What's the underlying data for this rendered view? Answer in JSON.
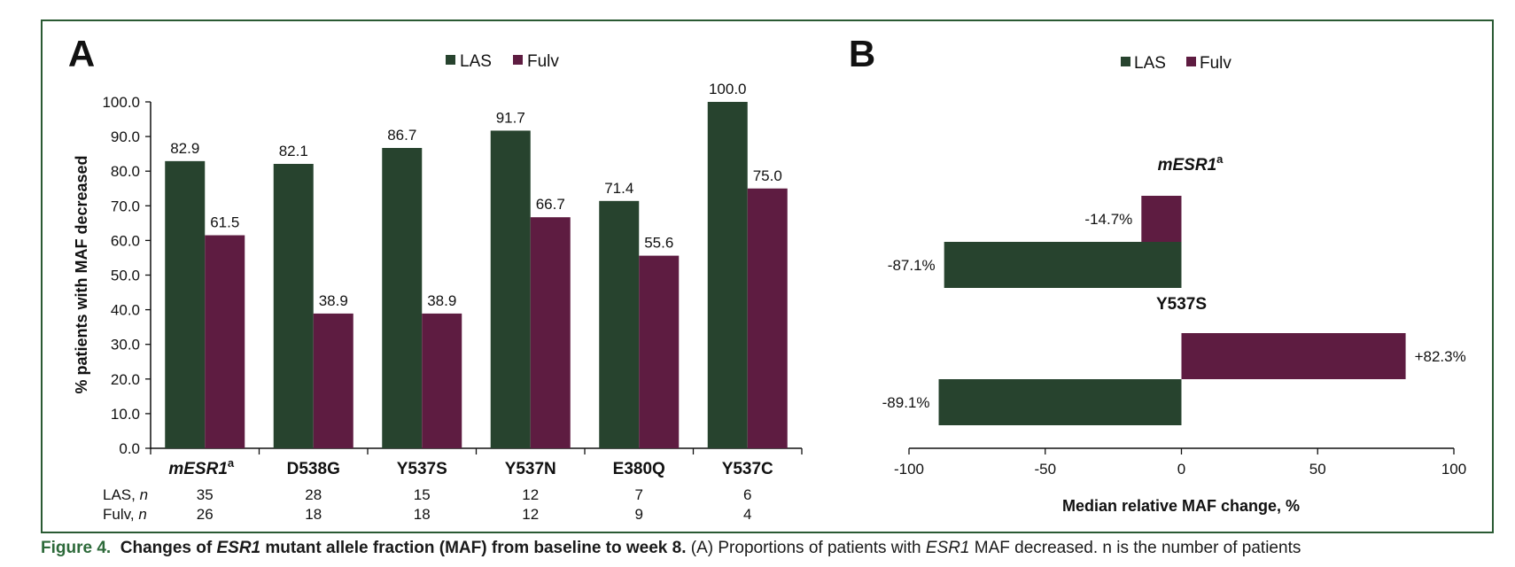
{
  "figure": {
    "fig_label": "Figure 4.",
    "caption_bold_1": "Changes of ",
    "caption_bold_gene": "ESR1",
    "caption_bold_2": " mutant allele fraction (MAF) from baseline to week 8.",
    "caption_rest_1": " (A) Proportions of patients with ",
    "caption_rest_gene": "ESR1",
    "caption_rest_2": " MAF decreased. n is the number of patients"
  },
  "colors": {
    "las": "#27432e",
    "fulv": "#5e1c41",
    "frame": "#2a5a33"
  },
  "chart_data": [
    {
      "panel": "A",
      "type": "bar",
      "ylabel": "% patients with MAF decreased",
      "ylim": [
        0,
        100
      ],
      "yticks": [
        "0.0",
        "10.0",
        "20.0",
        "30.0",
        "40.0",
        "50.0",
        "60.0",
        "70.0",
        "80.0",
        "90.0",
        "100.0"
      ],
      "categories": [
        "mESR1",
        "D538G",
        "Y537S",
        "Y537N",
        "E380Q",
        "Y537C"
      ],
      "first_category_superscript": "a",
      "series": [
        {
          "name": "LAS",
          "values": [
            82.9,
            82.1,
            86.7,
            91.7,
            71.4,
            100.0
          ],
          "labels": [
            "82.9",
            "82.1",
            "86.7",
            "91.7",
            "71.4",
            "100.0"
          ]
        },
        {
          "name": "Fulv",
          "values": [
            61.5,
            38.9,
            38.9,
            66.7,
            55.6,
            75.0
          ],
          "labels": [
            "61.5",
            "38.9",
            "38.9",
            "66.7",
            "55.6",
            "75.0"
          ]
        }
      ],
      "n_rows": [
        {
          "label": "LAS, ",
          "italic": "n",
          "values": [
            "35",
            "28",
            "15",
            "12",
            "7",
            "6"
          ]
        },
        {
          "label": "Fulv, ",
          "italic": "n",
          "values": [
            "26",
            "18",
            "18",
            "12",
            "9",
            "4"
          ]
        }
      ]
    },
    {
      "panel": "B",
      "type": "bar",
      "orientation": "horizontal",
      "xlabel": "Median relative MAF change, %",
      "xlim": [
        -100,
        100
      ],
      "xticks": [
        "-100",
        "-50",
        "0",
        "50",
        "100"
      ],
      "groups": [
        {
          "name": "mESR1",
          "superscript": "a",
          "italic": true,
          "fulv": -14.7,
          "fulv_label": "-14.7%",
          "las": -87.1,
          "las_label": "-87.1%"
        },
        {
          "name": "Y537S",
          "superscript": "",
          "italic": false,
          "fulv": 82.3,
          "fulv_label": "+82.3%",
          "las": -89.1,
          "las_label": "-89.1%"
        }
      ],
      "legend": [
        "LAS",
        "Fulv"
      ]
    }
  ]
}
